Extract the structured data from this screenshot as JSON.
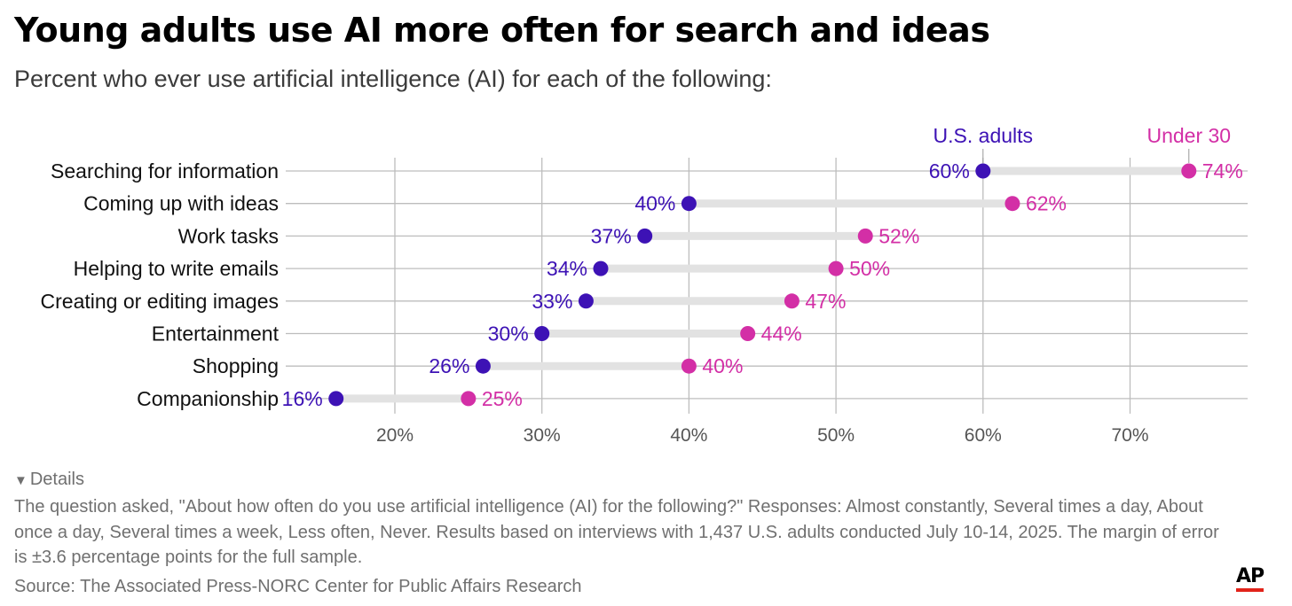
{
  "title": "Young adults use AI more often for search and ideas",
  "subtitle": "Percent who ever use artificial intelligence (AI) for each of the following:",
  "details_label": "Details",
  "note": "The question asked, \"About how often do you use artificial intelligence (AI) for the following?\" Responses: Almost constantly, Several times a day, About once a day, Several times a week, Less often, Never. Results based on interviews with 1,437 U.S. adults conducted July 10-14, 2025. The margin of error is ±3.6 percentage points for the full sample.",
  "source": "Source: The Associated Press-NORC Center for Public Affairs Research",
  "logo": "AP",
  "colors": {
    "us_adults": "#3d12b5",
    "under_30": "#d32fa6",
    "connector": "#e2e2e2",
    "grid": "#bdbdbd",
    "accent_red": "#e2231a"
  },
  "chart_data": {
    "type": "dot-plot",
    "categories": [
      "Searching for information",
      "Coming up with ideas",
      "Work tasks",
      "Helping to write emails",
      "Creating or editing images",
      "Entertainment",
      "Shopping",
      "Companionship"
    ],
    "series": [
      {
        "name": "U.S. adults",
        "values": [
          60,
          40,
          37,
          34,
          33,
          30,
          26,
          16
        ],
        "color": "#3d12b5"
      },
      {
        "name": "Under 30",
        "values": [
          74,
          62,
          52,
          50,
          47,
          44,
          40,
          25
        ],
        "color": "#d32fa6"
      }
    ],
    "value_suffix": "%",
    "xticks": [
      20,
      30,
      40,
      50,
      60,
      70
    ],
    "xtick_labels": [
      "20%",
      "30%",
      "40%",
      "50%",
      "60%",
      "70%"
    ],
    "xlim": [
      20,
      70
    ],
    "grid": true,
    "legend": "labels above the first row"
  }
}
